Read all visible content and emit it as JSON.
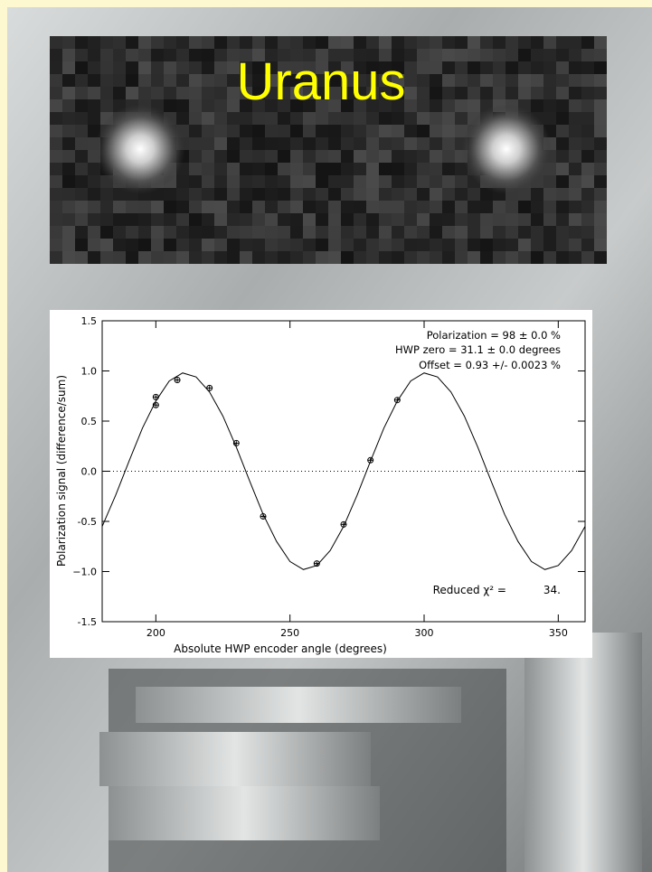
{
  "image_label": "Uranus",
  "chart_data": {
    "type": "scatter",
    "xlabel": "Absolute HWP encoder angle (degrees)",
    "ylabel": "Polarization signal (difference/sum)",
    "annotations": [
      "Polarization =  98 ±  0.0 %",
      "HWP zero =  31.1 ± 0.0 degrees",
      "Offset =   0.93 +/- 0.0023 %"
    ],
    "chi_label": "Reduced χ² =",
    "chi_value": "34.",
    "xlim": [
      180,
      360
    ],
    "xticks": [
      200,
      250,
      300,
      350
    ],
    "ylim": [
      -1.5,
      1.5
    ],
    "yticks": [
      -1.5,
      {
        "value": -1,
        "label": "−1.0"
      },
      -0.5,
      {
        "value": 0,
        "label": "0.0"
      },
      0.5,
      {
        "value": 1,
        "label": "1.0"
      },
      1.5
    ],
    "color": "#000000",
    "points": {
      "x": [
        200,
        200,
        208,
        220,
        230,
        240,
        260,
        270,
        280,
        290
      ],
      "values": [
        0.74,
        0.66,
        0.91,
        0.83,
        0.28,
        -0.45,
        -0.92,
        -0.53,
        0.11,
        0.71
      ],
      "errors": [
        0.02,
        0.02,
        0.02,
        0.02,
        0.02,
        0.02,
        0.02,
        0.02,
        0.02,
        0.02
      ]
    },
    "fit": {
      "x": [
        180,
        185,
        190,
        195,
        200,
        205,
        210,
        215,
        220,
        225,
        230,
        235,
        240,
        245,
        250,
        255,
        260,
        265,
        270,
        275,
        280,
        285,
        290,
        295,
        300,
        305,
        310,
        315,
        320,
        325,
        330,
        335,
        340,
        345,
        350,
        355,
        360
      ],
      "values": [
        -0.55,
        -0.24,
        0.1,
        0.43,
        0.7,
        0.9,
        0.98,
        0.94,
        0.79,
        0.55,
        0.24,
        -0.1,
        -0.43,
        -0.7,
        -0.9,
        -0.98,
        -0.94,
        -0.79,
        -0.55,
        -0.24,
        0.1,
        0.43,
        0.7,
        0.9,
        0.98,
        0.94,
        0.79,
        0.55,
        0.24,
        -0.1,
        -0.43,
        -0.7,
        -0.9,
        -0.98,
        -0.94,
        -0.79,
        -0.55
      ]
    }
  }
}
